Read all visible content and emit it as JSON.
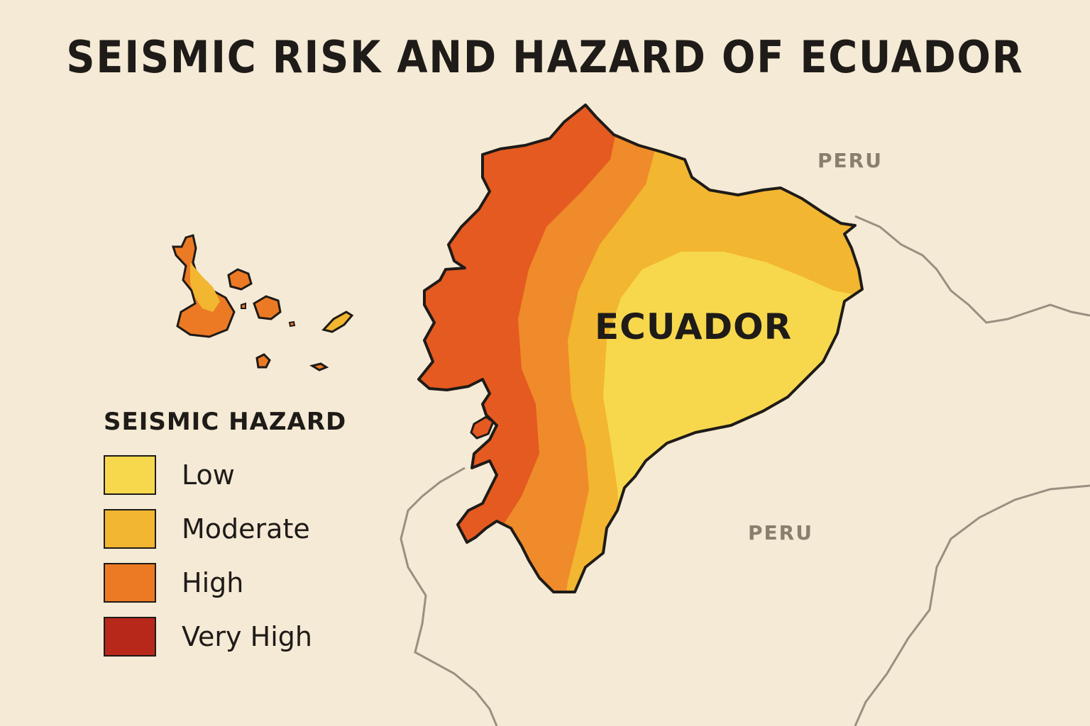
{
  "title": "SEISMIC RISK AND HAZARD OF ECUADOR",
  "country_label": "ECUADOR",
  "neighbors": {
    "north": "PERU",
    "south": "PERU"
  },
  "legend": {
    "title": "SEISMIC HAZARD",
    "items": [
      {
        "label": "Low",
        "color": "#f7d84c"
      },
      {
        "label": "Moderate",
        "color": "#f2b630"
      },
      {
        "label": "High",
        "color": "#ec7a24"
      },
      {
        "label": "Very High",
        "color": "#b8281a"
      }
    ]
  },
  "colors": {
    "background": "#f5ead5",
    "zone_west": "#e55a20",
    "zone_high": "#ef8b2a",
    "zone_moderate": "#f2b630",
    "zone_low": "#f7d84c",
    "outline": "#1e1b18",
    "border_line": "#9a8f80"
  }
}
